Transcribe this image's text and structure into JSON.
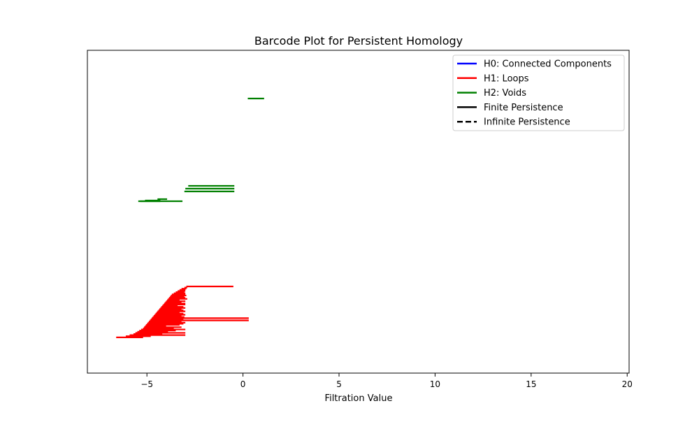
{
  "chart_data": {
    "type": "barcode",
    "title": "Barcode Plot for Persistent Homology",
    "xlabel": "Filtration Value",
    "ylabel": "",
    "xlim": [
      -8.1,
      20.1
    ],
    "x_ticks": [
      -5,
      0,
      5,
      10,
      15,
      20
    ],
    "x_tick_labels": [
      "−5",
      "0",
      "5",
      "10",
      "15",
      "20"
    ],
    "y_ticks_visible": false,
    "grid": false,
    "legend_position": "top-right",
    "legend": [
      {
        "label": "H0: Connected Components",
        "color": "#0000ff",
        "style": "solid"
      },
      {
        "label": "H1: Loops",
        "color": "#ff0000",
        "style": "solid"
      },
      {
        "label": "H2: Voids",
        "color": "#008000",
        "style": "solid"
      },
      {
        "label": "Finite Persistence",
        "color": "#000000",
        "style": "solid"
      },
      {
        "label": "Infinite Persistence",
        "color": "#000000",
        "style": "dashed"
      }
    ],
    "series": [
      {
        "name": "H0: Connected Components",
        "color": "#0000ff",
        "bars": []
      },
      {
        "name": "H1: Loops",
        "color": "#ff0000",
        "bars": [
          {
            "birth": -2.95,
            "death": -0.5,
            "index": 0
          },
          {
            "birth": -3.05,
            "death": -2.9,
            "index": 1
          },
          {
            "birth": -3.2,
            "death": -2.95,
            "index": 2
          },
          {
            "birth": -3.3,
            "death": -3.0,
            "index": 3
          },
          {
            "birth": -3.4,
            "death": -3.0,
            "index": 4
          },
          {
            "birth": -3.5,
            "death": -3.05,
            "index": 5
          },
          {
            "birth": -3.6,
            "death": -3.0,
            "index": 6
          },
          {
            "birth": -3.7,
            "death": -3.0,
            "index": 7
          },
          {
            "birth": -3.75,
            "death": -2.95,
            "index": 8
          },
          {
            "birth": -3.8,
            "death": -3.05,
            "index": 9
          },
          {
            "birth": -3.85,
            "death": -3.0,
            "index": 10
          },
          {
            "birth": -3.9,
            "death": -2.9,
            "index": 11
          },
          {
            "birth": -3.95,
            "death": -3.3,
            "index": 12
          },
          {
            "birth": -4.0,
            "death": -3.0,
            "index": 13
          },
          {
            "birth": -4.05,
            "death": -3.2,
            "index": 14
          },
          {
            "birth": -4.1,
            "death": -3.0,
            "index": 15
          },
          {
            "birth": -4.15,
            "death": -3.0,
            "index": 16
          },
          {
            "birth": -4.2,
            "death": -3.4,
            "index": 17
          },
          {
            "birth": -4.25,
            "death": -3.1,
            "index": 18
          },
          {
            "birth": -4.3,
            "death": -3.0,
            "index": 19
          },
          {
            "birth": -4.35,
            "death": -3.2,
            "index": 20
          },
          {
            "birth": -4.4,
            "death": -3.1,
            "index": 21
          },
          {
            "birth": -4.45,
            "death": -3.0,
            "index": 22
          },
          {
            "birth": -4.5,
            "death": -3.3,
            "index": 23
          },
          {
            "birth": -4.55,
            "death": -3.1,
            "index": 24
          },
          {
            "birth": -4.6,
            "death": -3.0,
            "index": 25
          },
          {
            "birth": -4.65,
            "death": -3.2,
            "index": 26
          },
          {
            "birth": -4.7,
            "death": -3.05,
            "index": 27
          },
          {
            "birth": -4.75,
            "death": 0.3,
            "index": 28
          },
          {
            "birth": -4.8,
            "death": -3.1,
            "index": 29
          },
          {
            "birth": -4.85,
            "death": 0.3,
            "index": 30
          },
          {
            "birth": -4.9,
            "death": -3.2,
            "index": 31
          },
          {
            "birth": -4.95,
            "death": -3.0,
            "index": 32
          },
          {
            "birth": -5.0,
            "death": -3.1,
            "index": 33
          },
          {
            "birth": -5.05,
            "death": -3.3,
            "index": 34
          },
          {
            "birth": -5.1,
            "death": -4.0,
            "index": 35
          },
          {
            "birth": -5.15,
            "death": -3.2,
            "index": 36
          },
          {
            "birth": -5.2,
            "death": -3.6,
            "index": 37
          },
          {
            "birth": -5.3,
            "death": -3.0,
            "index": 38
          },
          {
            "birth": -5.4,
            "death": -3.5,
            "index": 39
          },
          {
            "birth": -5.5,
            "death": -3.9,
            "index": 40
          },
          {
            "birth": -5.6,
            "death": -3.0,
            "index": 41
          },
          {
            "birth": -5.7,
            "death": -4.2,
            "index": 42
          },
          {
            "birth": -5.9,
            "death": -3.0,
            "index": 43
          },
          {
            "birth": -6.1,
            "death": -4.8,
            "index": 44
          },
          {
            "birth": -6.6,
            "death": -5.2,
            "index": 45
          }
        ]
      },
      {
        "name": "H2: Voids",
        "color": "#008000",
        "bars": [
          {
            "birth": 0.25,
            "death": 1.1,
            "index": 0
          },
          {
            "birth": -2.85,
            "death": -0.45,
            "index": 1
          },
          {
            "birth": -3.0,
            "death": -0.45,
            "index": 2
          },
          {
            "birth": -3.05,
            "death": -0.45,
            "index": 3
          },
          {
            "birth": -4.45,
            "death": -3.95,
            "index": 4
          },
          {
            "birth": -5.1,
            "death": -4.3,
            "index": 5
          },
          {
            "birth": -5.35,
            "death": -4.3,
            "index": 6
          },
          {
            "birth": -5.45,
            "death": -3.15,
            "index": 7
          }
        ]
      }
    ]
  }
}
